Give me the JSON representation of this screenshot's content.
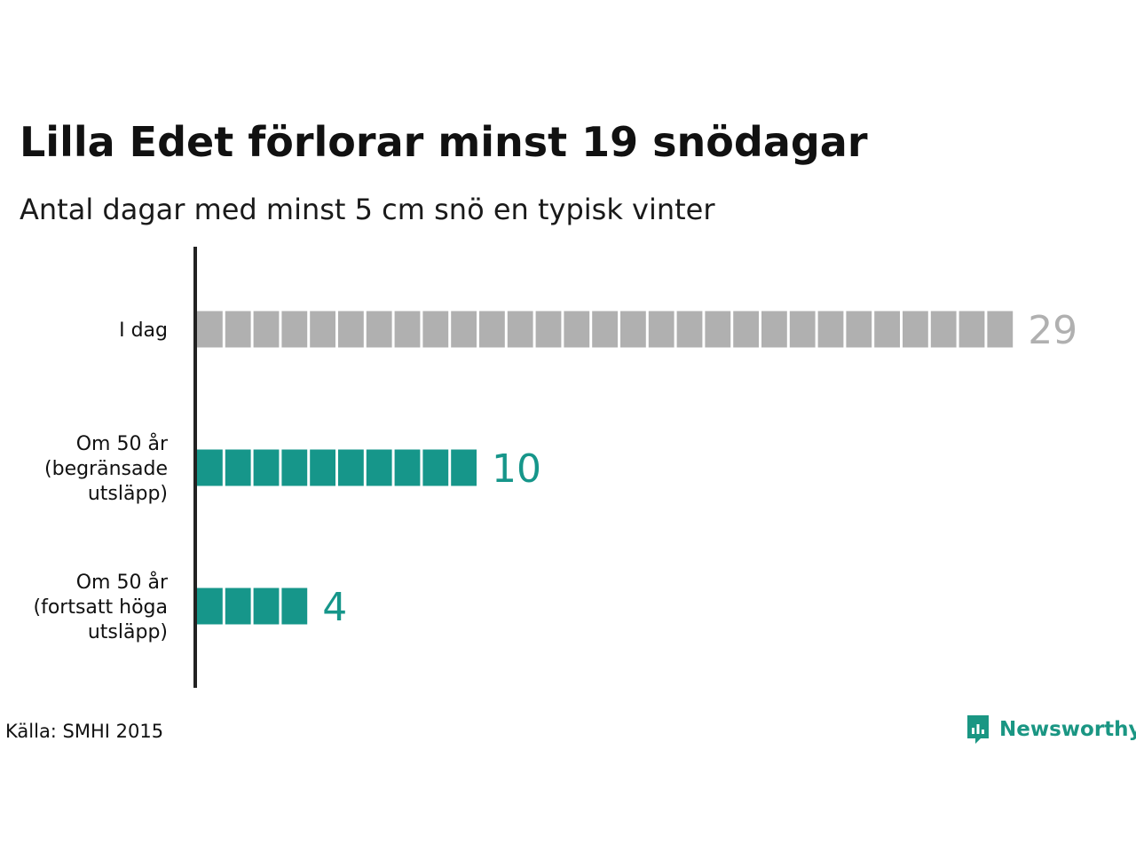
{
  "title": "Lilla Edet förlorar minst 19 snödagar",
  "subtitle": "Antal dagar med minst 5 cm snö en typisk vinter",
  "source": "Källa: SMHI 2015",
  "brand": {
    "name": "Newsworthy",
    "icon": "newsworthy-logo-icon",
    "color": "#1a9683"
  },
  "colors": {
    "today": "#b0b0b0",
    "future": "#16968a",
    "axis": "#222222"
  },
  "chart_data": {
    "type": "bar",
    "orientation": "horizontal",
    "unit_squares": true,
    "categories": [
      [
        "I dag"
      ],
      [
        "Om 50 år",
        "(begränsade",
        "utsläpp)"
      ],
      [
        "Om 50 år",
        "(fortsatt höga",
        "utsläpp)"
      ]
    ],
    "values": [
      29,
      10,
      4
    ],
    "labels": [
      "29",
      "10",
      "4"
    ],
    "bar_colors": [
      "#b0b0b0",
      "#16968a",
      "#16968a"
    ],
    "grid": false,
    "legend": "none"
  }
}
